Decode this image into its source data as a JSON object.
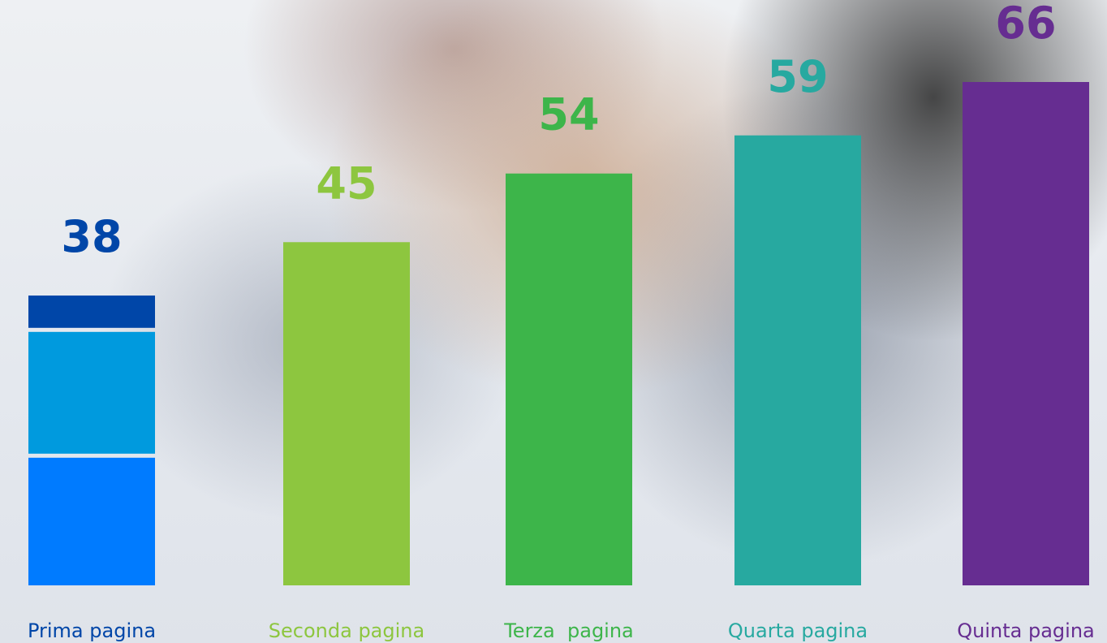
{
  "chart_data": {
    "type": "bar",
    "categories": [
      "Prima pagina",
      "Seconda pagina",
      "Terza  pagina",
      "Quarta pagina",
      "Quinta pagina"
    ],
    "values": [
      38,
      45,
      54,
      59,
      66
    ],
    "colors": [
      "#0046a8",
      "#8dc63f",
      "#3db54a",
      "#27a9a0",
      "#662d91"
    ],
    "stacked": [
      [
        17,
        16.5,
        4.5
      ],
      null,
      null,
      null,
      null
    ],
    "stack_colors": [
      "#007bff",
      "#009ade",
      "#0046a8"
    ]
  }
}
